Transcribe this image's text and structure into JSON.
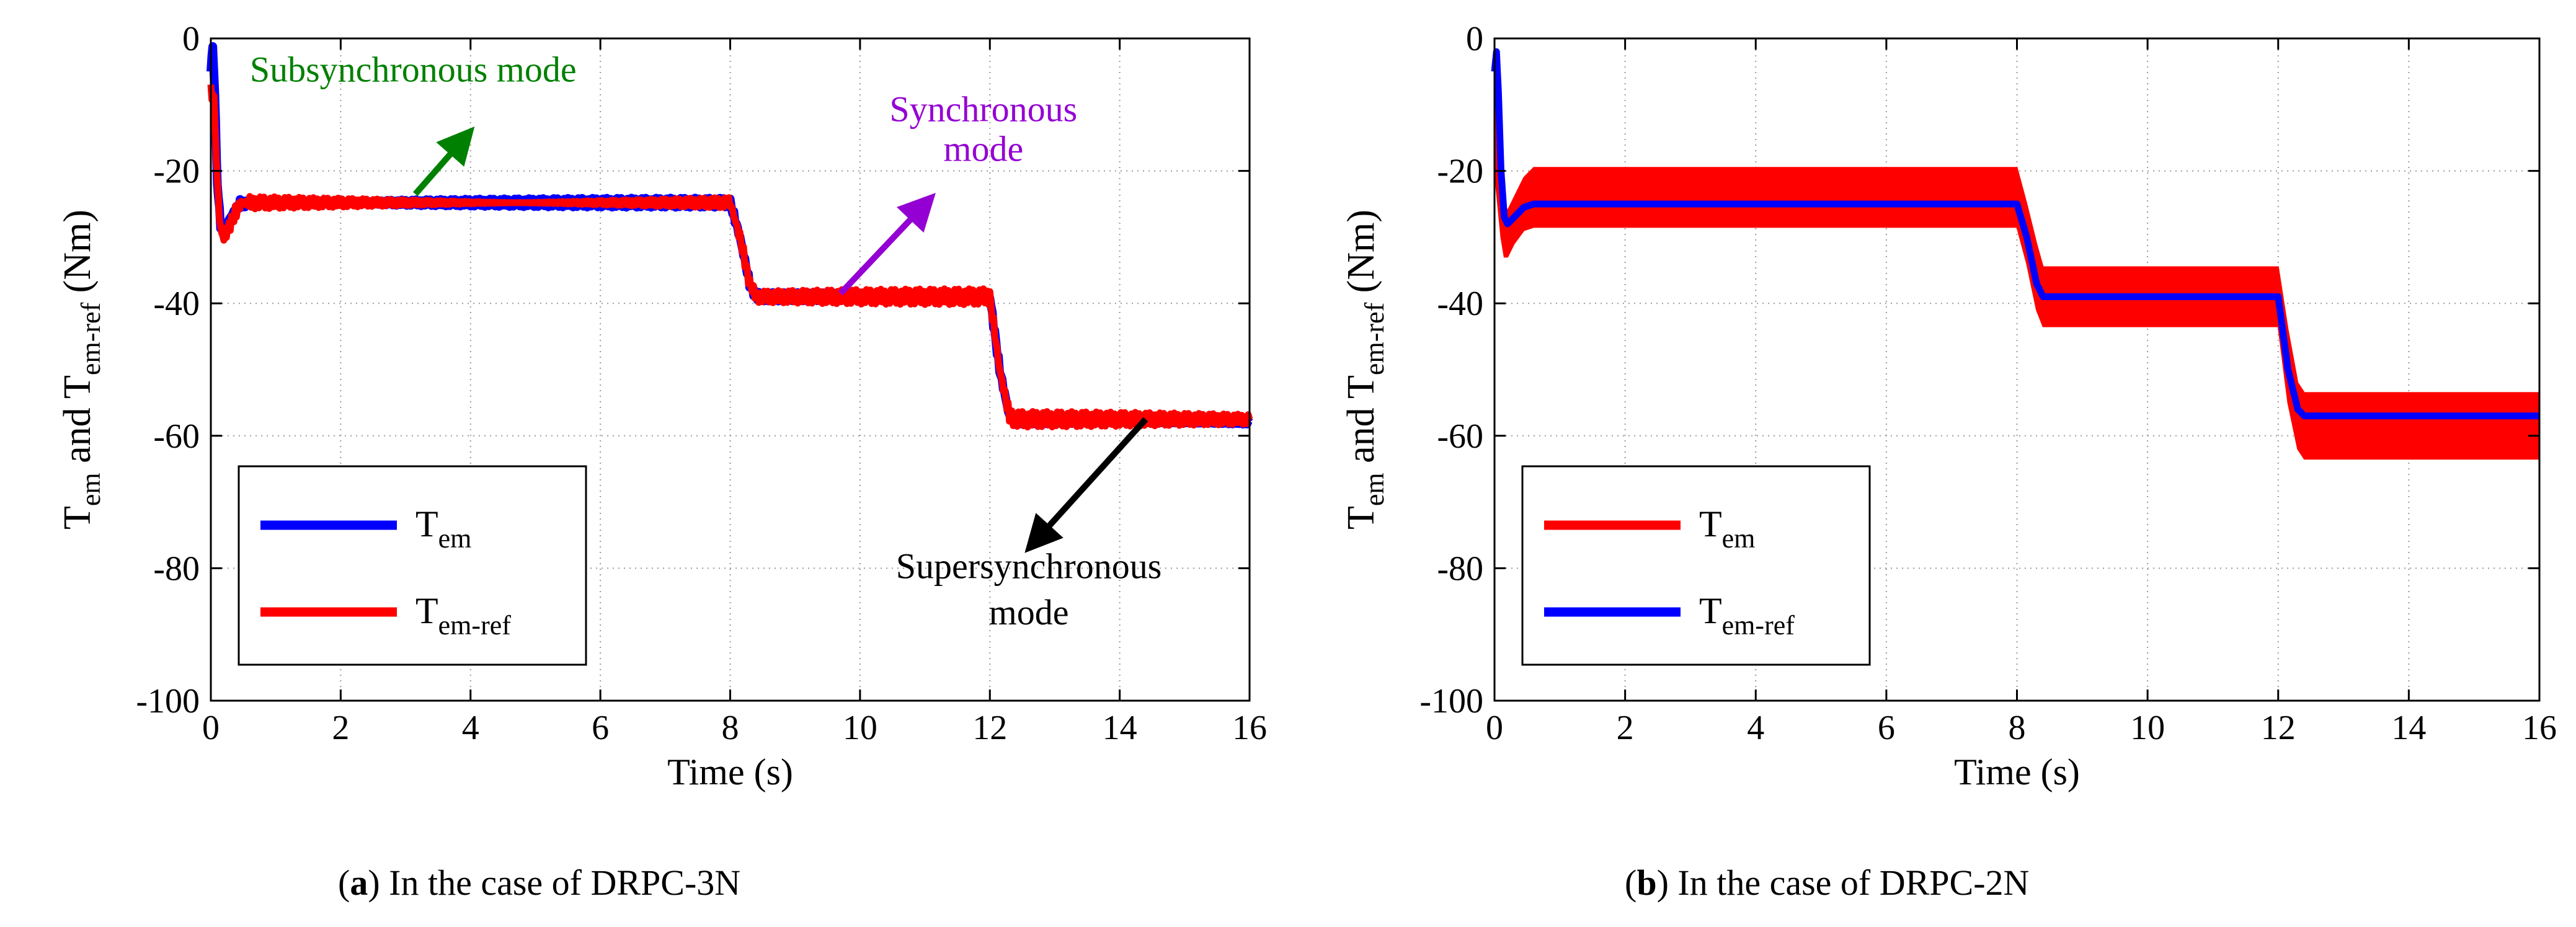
{
  "chart_data": [
    {
      "id": "a",
      "type": "line",
      "panel_label": "a",
      "caption": "In the case of DRPC-3N",
      "xlabel": "Time (s)",
      "ylabel": {
        "main": "T",
        "sub1": "em",
        "mid": " and T",
        "sub2": "em-ref",
        "tail": " (Nm)"
      },
      "xlim": [
        0,
        16
      ],
      "ylim": [
        -100,
        0
      ],
      "xticks": [
        0,
        2,
        4,
        6,
        8,
        10,
        12,
        14,
        16
      ],
      "yticks": [
        0,
        -20,
        -40,
        -60,
        -80,
        -100
      ],
      "grid": true,
      "legend_position": "lower-left",
      "series": [
        {
          "name": "T",
          "sub": "em",
          "color": "#0000ff",
          "x": [
            0,
            0.03,
            0.06,
            0.1,
            0.15,
            0.2,
            0.3,
            0.45,
            0.6,
            8.0,
            8.15,
            8.3,
            8.4,
            12.0,
            12.15,
            12.3,
            12.4,
            16
          ],
          "y": [
            -5,
            -1,
            -8,
            -22,
            -28,
            -29,
            -27,
            -25,
            -24.8,
            -24.8,
            -30,
            -37,
            -39,
            -39,
            -50,
            -57,
            -58,
            -58
          ],
          "ripple": 0.7
        },
        {
          "name": "T",
          "sub": "em-ref",
          "color": "#ff0000",
          "x": [
            0,
            0.05,
            0.1,
            0.15,
            0.2,
            0.3,
            0.45,
            0.6,
            8.0,
            8.15,
            8.3,
            8.4,
            12.0,
            12.15,
            12.3,
            12.4,
            16
          ],
          "y": [
            -8,
            -9,
            -22,
            -29,
            -30,
            -28,
            -25,
            -24.8,
            -24.8,
            -30,
            -37,
            -39,
            -39,
            -50,
            -57,
            -57.5,
            -57.5
          ],
          "ripple": 1.2
        }
      ],
      "annotations": [
        {
          "text": "Subsynchronous mode",
          "color": "#008000",
          "x": 0.6,
          "y": -6.5,
          "anchor": "start",
          "arrow": {
            "from": [
              3.15,
              -23.5
            ],
            "to": [
              4.0,
              -14
            ]
          }
        },
        {
          "text": "Synchronous",
          "text2": "mode",
          "color": "#9400d3",
          "x": 11.9,
          "y": -12.5,
          "y2": -18.5,
          "anchor": "middle",
          "arrow": {
            "from": [
              9.7,
              -38.5
            ],
            "to": [
              11.1,
              -24
            ]
          }
        },
        {
          "text": "Supersynchronous",
          "text2": "mode",
          "color": "#000000",
          "x": 12.6,
          "y": -81.5,
          "y2": -88.5,
          "anchor": "middle",
          "arrow": {
            "from": [
              14.4,
              -57.5
            ],
            "to": [
              12.6,
              -77
            ]
          }
        }
      ]
    },
    {
      "id": "b",
      "type": "line",
      "panel_label": "b",
      "caption": "In the case of DRPC-2N",
      "xlabel": "Time (s)",
      "ylabel": {
        "main": "T",
        "sub1": "em",
        "mid": " and T",
        "sub2": "em-ref",
        "tail": " (Nm)"
      },
      "xlim": [
        0,
        16
      ],
      "ylim": [
        -100,
        0
      ],
      "xticks": [
        0,
        2,
        4,
        6,
        8,
        10,
        12,
        14,
        16
      ],
      "yticks": [
        0,
        -20,
        -40,
        -60,
        -80,
        -100
      ],
      "grid": true,
      "legend_position": "lower-left",
      "bands": [
        {
          "color": "#ff0000",
          "x": [
            0,
            0.05,
            0.1,
            0.15,
            0.2,
            0.3,
            0.45,
            0.6,
            8.0,
            8.15,
            8.3,
            8.4,
            12.0,
            12.15,
            12.3,
            12.4,
            16
          ],
          "upper": [
            -2,
            -8,
            -18,
            -25,
            -26,
            -24,
            -21,
            -19.5,
            -19.5,
            -25,
            -31,
            -34.5,
            -34.5,
            -44,
            -52,
            -53.5,
            -53.5
          ],
          "lower": [
            -20,
            -25,
            -30,
            -33,
            -33,
            -31,
            -29,
            -28.5,
            -28.5,
            -34,
            -41,
            -43.5,
            -43.5,
            -55,
            -62,
            -63.5,
            -63.5
          ]
        }
      ],
      "series": [
        {
          "name": "T",
          "sub": "em",
          "color": "#ff0000",
          "band": true,
          "x": [
            0,
            0.03,
            0.06,
            0.1,
            0.15,
            0.2,
            0.3,
            0.45,
            0.6,
            8.0,
            8.15,
            8.3,
            8.4,
            12.0,
            12.15,
            12.3,
            12.4,
            16
          ],
          "y": [
            -5,
            -2,
            -8,
            -20,
            -27,
            -28,
            -27,
            -25.5,
            -25,
            -25,
            -30,
            -37,
            -39,
            -39,
            -50,
            -56,
            -57,
            -57
          ],
          "ripple": 0
        },
        {
          "name": "T",
          "sub": "em-ref",
          "color": "#0000ff",
          "x": [
            0,
            0.03,
            0.06,
            0.1,
            0.15,
            0.2,
            0.3,
            0.45,
            0.6,
            8.0,
            8.15,
            8.3,
            8.4,
            12.0,
            12.15,
            12.3,
            12.4,
            16
          ],
          "y": [
            -5,
            -2,
            -8,
            -20,
            -27,
            -28,
            -27,
            -25.5,
            -25,
            -25,
            -30,
            -37,
            -39,
            -39,
            -50,
            -56,
            -57,
            -57
          ],
          "ripple": 0
        }
      ],
      "annotations": []
    }
  ]
}
